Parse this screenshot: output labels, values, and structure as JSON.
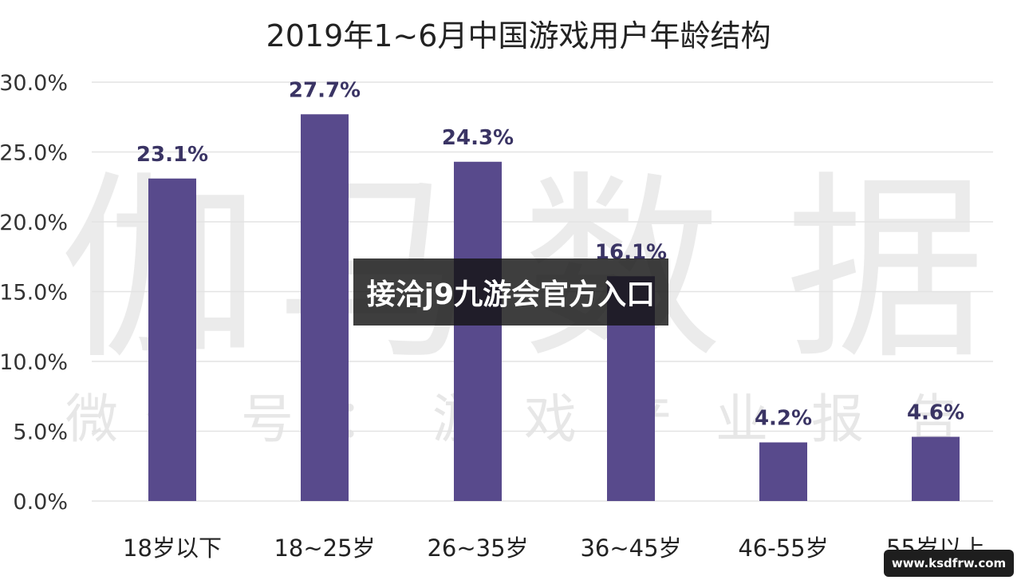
{
  "chart_data": {
    "type": "bar",
    "title": "2019年1~6月中国游戏用户年龄结构",
    "categories": [
      "18岁以下",
      "18~25岁",
      "26~35岁",
      "36~45岁",
      "46-55岁",
      "55岁以上"
    ],
    "values": [
      23.1,
      27.7,
      24.3,
      16.1,
      4.2,
      4.6
    ],
    "data_labels": [
      "23.1%",
      "27.7%",
      "24.3%",
      "16.1%",
      "4.2%",
      "4.6%"
    ],
    "ylim": [
      0,
      30
    ],
    "y_ticks": [
      0,
      5,
      10,
      15,
      20,
      25,
      30
    ],
    "y_tick_labels": [
      "0.0%",
      "5.0%",
      "10.0%",
      "15.0%",
      "20.0%",
      "25.0%",
      "30.0%"
    ],
    "xlabel": "",
    "ylabel": "",
    "grid": true,
    "bar_color": "#584a8c"
  },
  "watermark": {
    "big_text": [
      "伽",
      "马",
      "数",
      "据"
    ],
    "small_text": [
      "微",
      "信",
      "号",
      "：",
      "游",
      "戏",
      "产",
      "业",
      "报",
      "告"
    ]
  },
  "overlay": {
    "banner_text": "接洽j9九游会官方入口",
    "site_text": "www.ksdfrw.com"
  }
}
